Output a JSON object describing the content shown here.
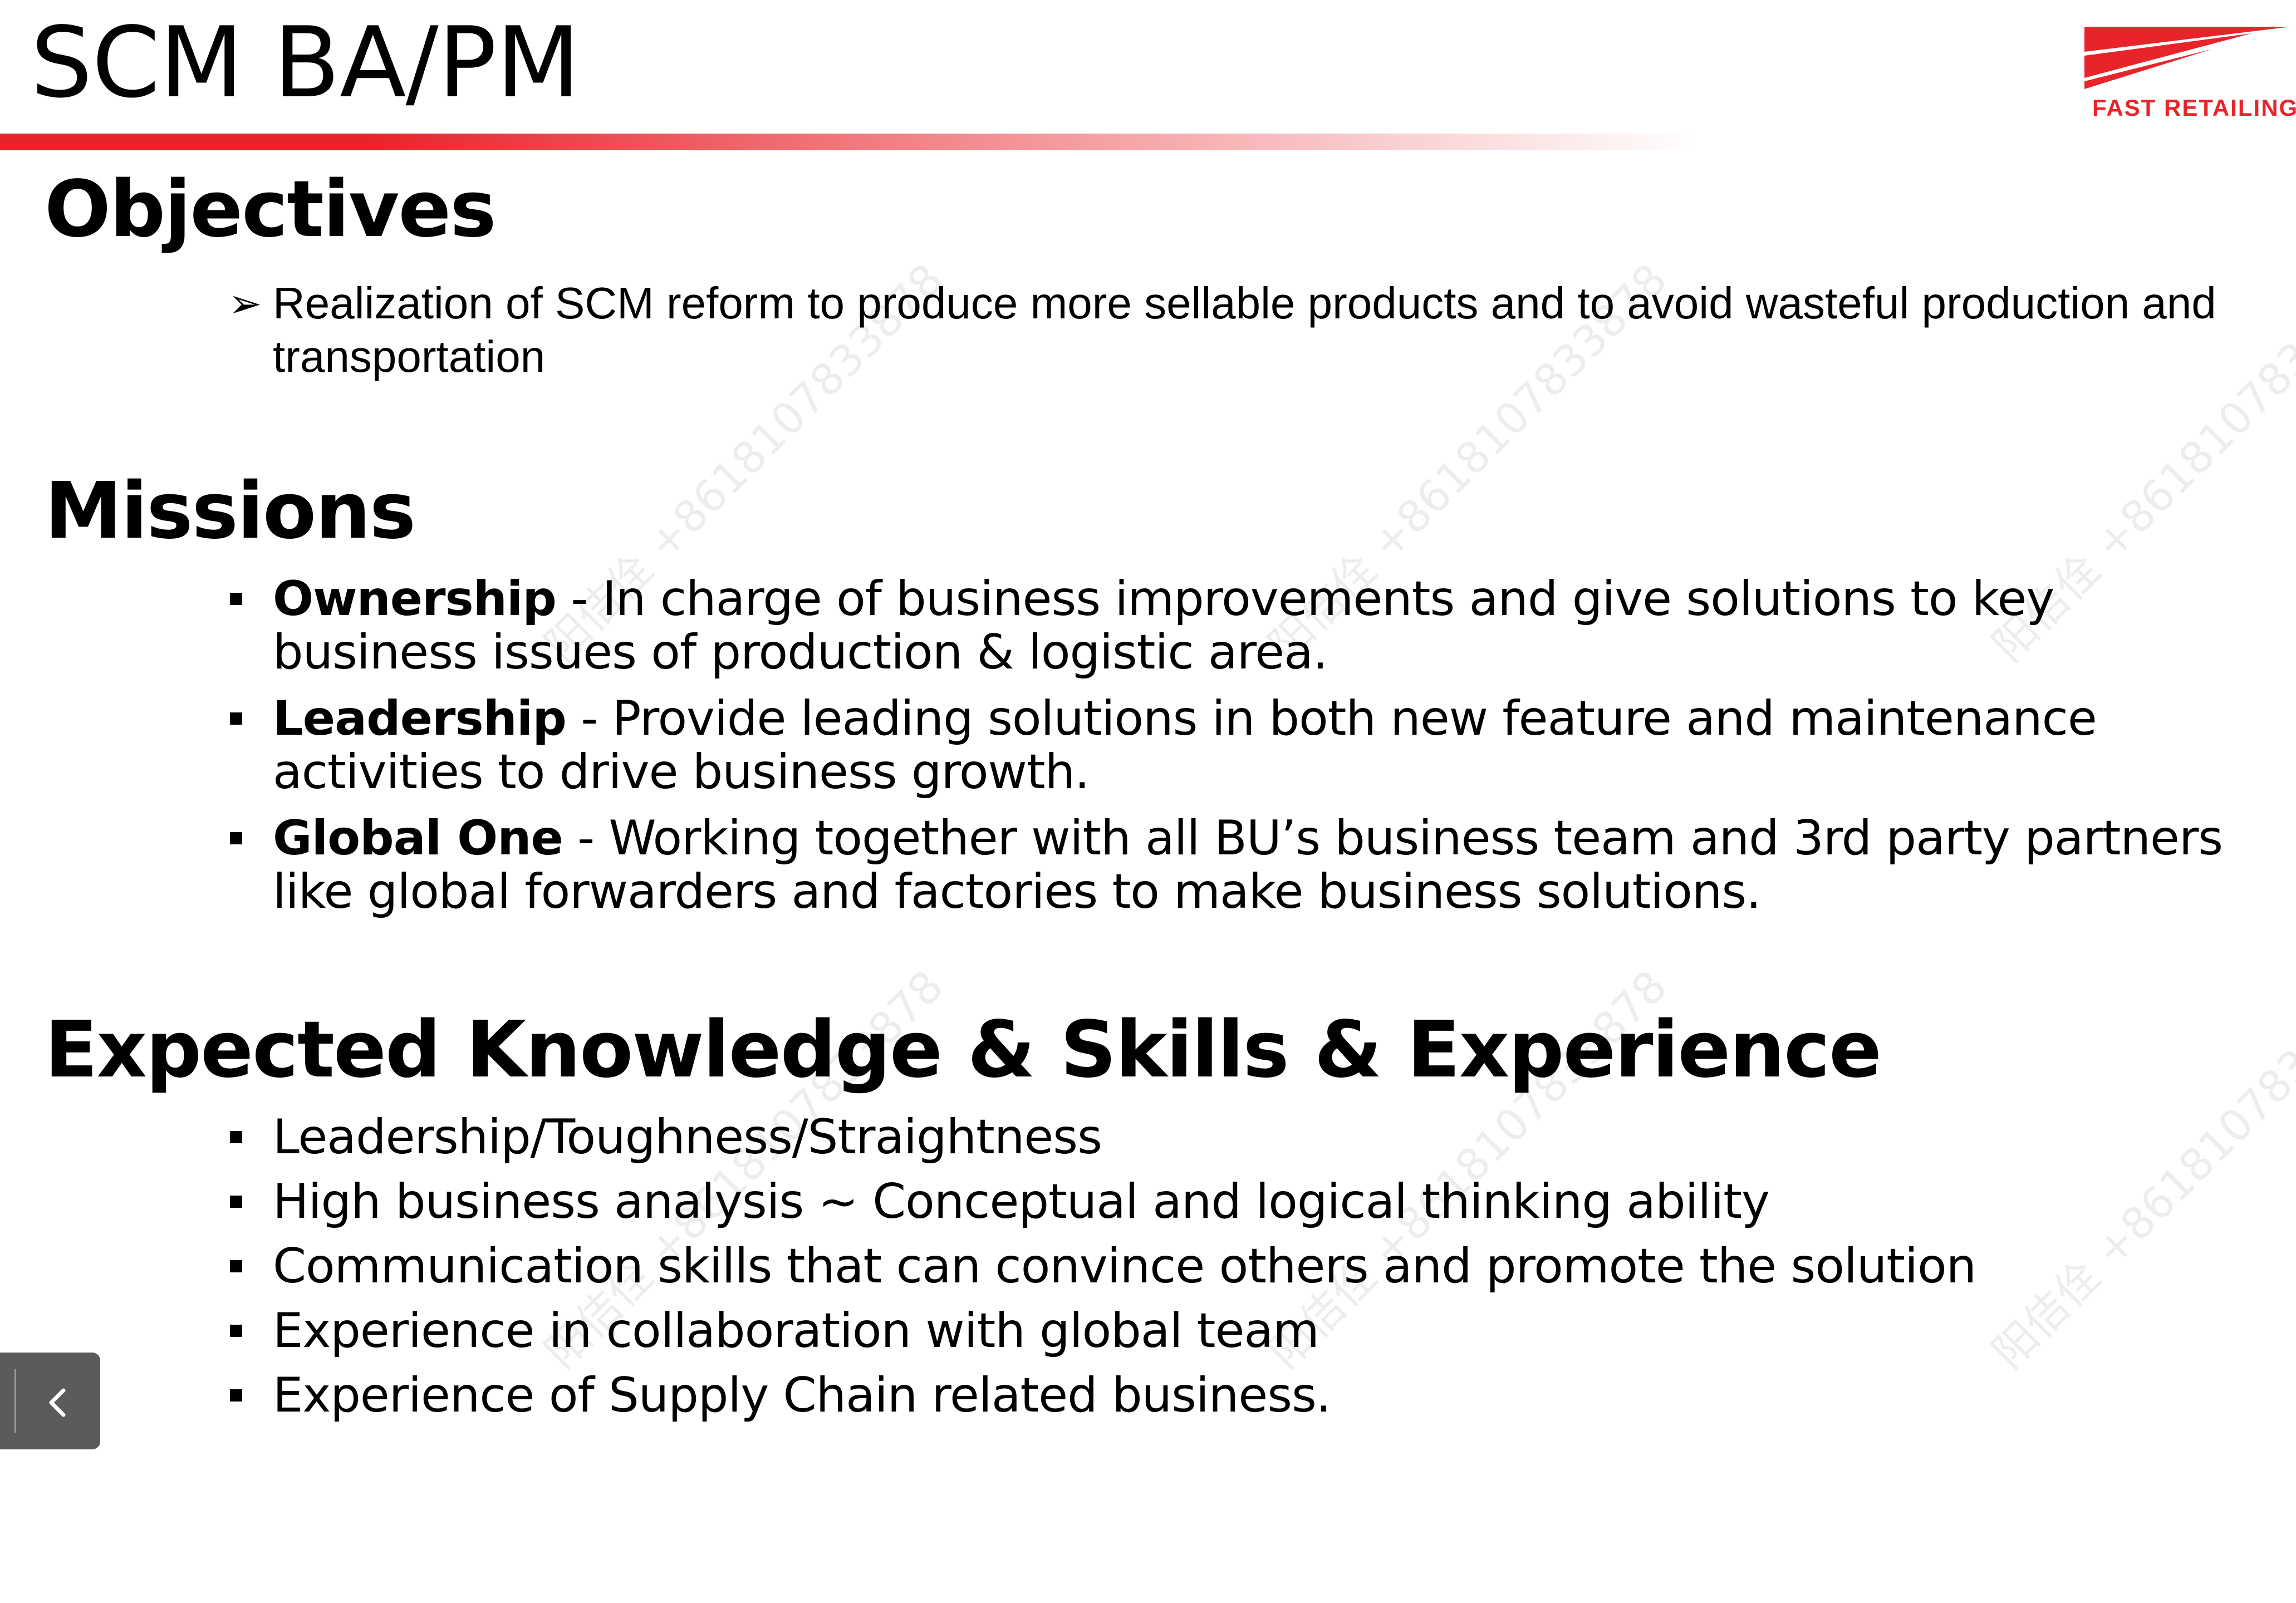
{
  "title": "SCM BA/PM",
  "logo": {
    "text": "FAST RETAILING",
    "color": "#e8242b"
  },
  "accent_color": "#e8242b",
  "objectives": {
    "heading": "Objectives",
    "items": [
      "Realization of SCM reform to produce more sellable products and to avoid wasteful production and transportation"
    ]
  },
  "missions": {
    "heading": "Missions",
    "items": [
      {
        "term": "Ownership",
        "text": " - In charge of business improvements and give solutions to key business issues of production & logistic area."
      },
      {
        "term": "Leadership",
        "text": " - Provide leading solutions in both new feature and maintenance activities to drive business growth."
      },
      {
        "term": "Global One",
        "text": " - Working together with all BU’s business team and 3rd party partners like global forwarders and factories to make business solutions."
      }
    ]
  },
  "skills": {
    "heading": "Expected Knowledge & Skills & Experience",
    "items": [
      "Leadership/Toughness/Straightness",
      "High business analysis ~ Conceptual and logical thinking ability",
      "Communication skills that can convince others and promote the solution",
      "Experience in collaboration with global team",
      "Experience of Supply Chain related business."
    ]
  },
  "watermark": {
    "text": "阳佶佺 +8618107833878"
  },
  "nav": {
    "icon": "chevron-left-icon"
  }
}
